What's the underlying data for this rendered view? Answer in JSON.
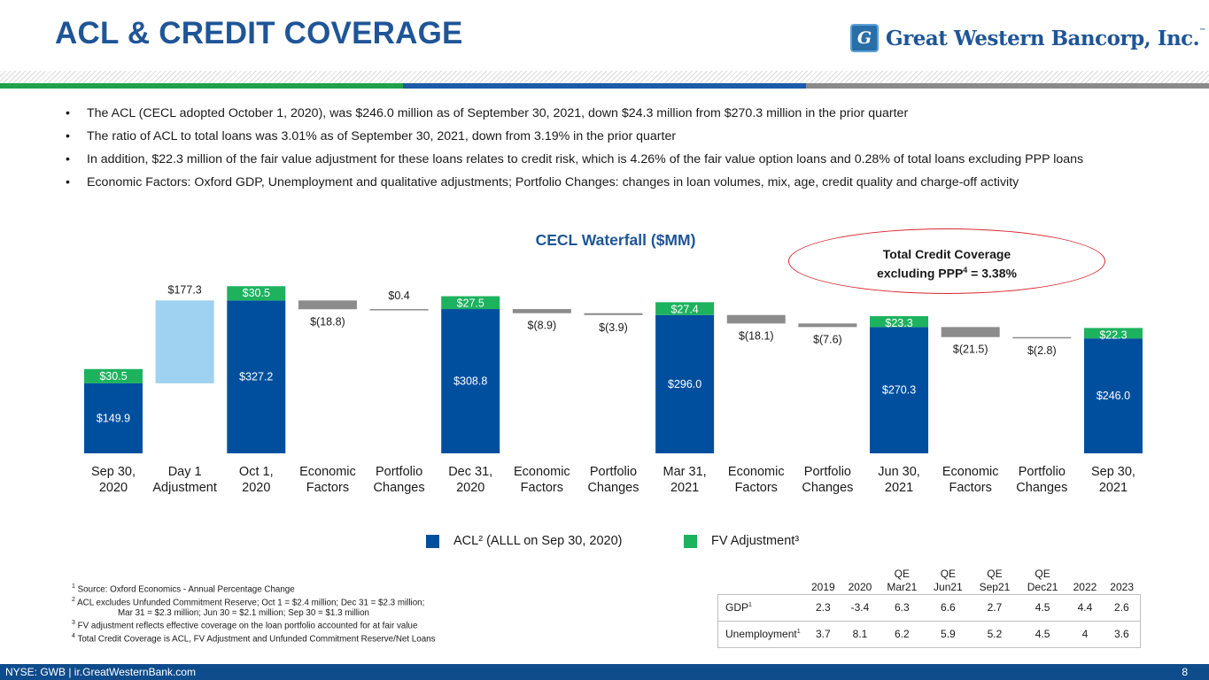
{
  "header": {
    "title": "ACL & CREDIT COVERAGE",
    "logo_text": "Great Western Bancorp, Inc.",
    "logo_mark": "G",
    "logo_tm": "™"
  },
  "bullets": [
    "The ACL (CECL adopted October 1, 2020), was $246.0 million as of September 30, 2021, down $24.3 million from $270.3 million in the prior quarter",
    "The ratio of ACL to total loans was 3.01% as of September 30, 2021, down from 3.19% in the prior quarter",
    "In addition, $22.3 million of the fair value adjustment for these loans relates to credit risk, which is 4.26% of the fair value option loans and 0.28% of total loans excluding PPP loans",
    "Economic Factors: Oxford GDP, Unemployment and qualitative adjustments; Portfolio Changes: changes in loan volumes, mix, age, credit quality and charge-off activity"
  ],
  "callout": {
    "line1": "Total Credit Coverage",
    "line2_pre": "excluding PPP",
    "line2_sup": "4",
    "line2_post": " = 3.38%"
  },
  "colors": {
    "acl": "#004f9f",
    "fv": "#1db25e",
    "day1": "#9fd2f0",
    "change": "#8c8c8c",
    "title_blue": "#1f5597"
  },
  "chart_data": {
    "type": "waterfall",
    "title": "CECL Waterfall ($MM)",
    "categories": [
      [
        "Sep 30,",
        "2020"
      ],
      [
        "Day 1",
        "Adjustment"
      ],
      [
        "Oct 1,",
        "2020"
      ],
      [
        "Economic",
        "Factors"
      ],
      [
        "Portfolio",
        "Changes"
      ],
      [
        "Dec 31,",
        "2020"
      ],
      [
        "Economic",
        "Factors"
      ],
      [
        "Portfolio",
        "Changes"
      ],
      [
        "Mar 31,",
        "2021"
      ],
      [
        "Economic",
        "Factors"
      ],
      [
        "Portfolio",
        "Changes"
      ],
      [
        "Jun 30,",
        "2021"
      ],
      [
        "Economic",
        "Factors"
      ],
      [
        "Portfolio",
        "Changes"
      ],
      [
        "Sep 30,",
        "2021"
      ]
    ],
    "bars": [
      {
        "kind": "total",
        "acl": 149.9,
        "fv": 30.5,
        "acl_label": "$149.9",
        "fv_label": "$30.5"
      },
      {
        "kind": "day1",
        "start": 149.9,
        "end": 327.2,
        "label": "$177.3"
      },
      {
        "kind": "total",
        "acl": 327.2,
        "fv": 30.5,
        "acl_label": "$327.2",
        "fv_label": "$30.5"
      },
      {
        "kind": "change",
        "start": 327.2,
        "end": 308.4,
        "label": "$(18.8)"
      },
      {
        "kind": "change",
        "start": 308.4,
        "end": 308.8,
        "label": "$0.4"
      },
      {
        "kind": "total",
        "acl": 308.8,
        "fv": 27.5,
        "acl_label": "$308.8",
        "fv_label": "$27.5"
      },
      {
        "kind": "change",
        "start": 308.8,
        "end": 299.9,
        "label": "$(8.9)"
      },
      {
        "kind": "change",
        "start": 299.9,
        "end": 296.0,
        "label": "$(3.9)"
      },
      {
        "kind": "total",
        "acl": 296.0,
        "fv": 27.4,
        "acl_label": "$296.0",
        "fv_label": "$27.4"
      },
      {
        "kind": "change",
        "start": 296.0,
        "end": 277.9,
        "label": "$(18.1)"
      },
      {
        "kind": "change",
        "start": 277.9,
        "end": 270.3,
        "label": "$(7.6)"
      },
      {
        "kind": "total",
        "acl": 270.3,
        "fv": 23.3,
        "acl_label": "$270.3",
        "fv_label": "$23.3"
      },
      {
        "kind": "change",
        "start": 270.3,
        "end": 248.8,
        "label": "$(21.5)"
      },
      {
        "kind": "change",
        "start": 248.8,
        "end": 246.0,
        "label": "$(2.8)"
      },
      {
        "kind": "total",
        "acl": 246.0,
        "fv": 22.3,
        "acl_label": "$246.0",
        "fv_label": "$22.3"
      }
    ],
    "legend": [
      "ACL² (ALLL on Sep 30, 2020)",
      "FV Adjustment³"
    ],
    "ylim": [
      0,
      360
    ],
    "xlabel": "",
    "ylabel": ""
  },
  "footnotes": {
    "fn1": "Source: Oxford Economics - Annual Percentage Change",
    "fn2a": "ACL excludes Unfunded Commitment Reserve;    Oct 1 = $2.4 million; Dec 31 = $2.3 million;",
    "fn2b": "Mar 31 = $2.3 million; Jun 30 = $2.1 million; Sep 30 = $1.3 million",
    "fn3": "FV adjustment reflects effective coverage on the loan portfolio accounted for at fair value",
    "fn4": "Total Credit Coverage is ACL, FV Adjustment and Unfunded Commitment Reserve/Net Loans",
    "sup1": "1",
    "sup2": "2",
    "sup3": "3",
    "sup4": "4"
  },
  "econ_table": {
    "headers": [
      [
        "",
        "2019"
      ],
      [
        "",
        "2020"
      ],
      [
        "QE",
        "Mar21"
      ],
      [
        "QE",
        "Jun21"
      ],
      [
        "QE",
        "Sep21"
      ],
      [
        "QE",
        "Dec21"
      ],
      [
        "",
        "2022"
      ],
      [
        "",
        "2023"
      ]
    ],
    "rows": [
      {
        "label": "GDP",
        "sup": "1",
        "values": [
          "2.3",
          "-3.4",
          "6.3",
          "6.6",
          "2.7",
          "4.5",
          "4.4",
          "2.6"
        ]
      },
      {
        "label": "Unemployment",
        "sup": "1",
        "values": [
          "3.7",
          "8.1",
          "6.2",
          "5.9",
          "5.2",
          "4.5",
          "4",
          "3.6"
        ]
      }
    ]
  },
  "footer": {
    "left": "NYSE: GWB  |  ir.GreatWesternBank.com",
    "page": "8"
  }
}
